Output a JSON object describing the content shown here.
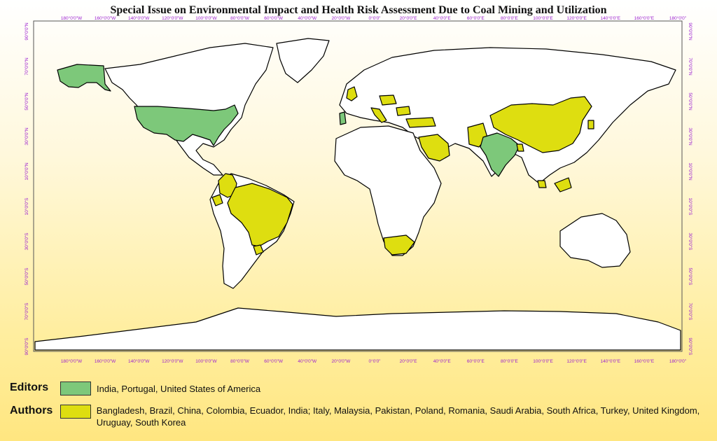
{
  "title": "Special Issue on Environmental Impact and Health Risk Assessment Due to Coal Mining and Utilization",
  "colors": {
    "editors": "#7dc87a",
    "authors": "#dede10",
    "grid_label": "#9b1fd0",
    "land": "#ffffff",
    "outline": "#000000"
  },
  "grid_labels": {
    "longitude": [
      "180°0'0\"W",
      "160°0'0\"W",
      "140°0'0\"W",
      "120°0'0\"W",
      "100°0'0\"W",
      "80°0'0\"W",
      "60°0'0\"W",
      "40°0'0\"W",
      "20°0'0\"W",
      "0°0'0\"",
      "20°0'0\"E",
      "40°0'0\"E",
      "60°0'0\"E",
      "80°0'0\"E",
      "100°0'0\"E",
      "120°0'0\"E",
      "140°0'0\"E",
      "160°0'0\"E",
      "180°0'0\""
    ],
    "latitude": [
      "90°0'0\"N",
      "70°0'0\"N",
      "50°0'0\"N",
      "30°0'0\"N",
      "10°0'0\"N",
      "10°0'0\"S",
      "30°0'0\"S",
      "50°0'0\"S",
      "70°0'0\"S",
      "90°0'0\"S"
    ]
  },
  "legend": {
    "editors": {
      "label": "Editors",
      "countries": "India, Portugal, United States of America"
    },
    "authors": {
      "label": "Authors",
      "countries": "Bangladesh, Brazil, China, Colombia, Ecuador, India; Italy, Malaysia, Pakistan, Poland, Romania, Saudi Arabia, South Africa, Turkey, United Kingdom, Uruguay, South Korea"
    }
  },
  "regions": {
    "editors": [
      "Alaska",
      "United States of America",
      "India",
      "Portugal"
    ],
    "authors": [
      "Colombia",
      "Ecuador",
      "Brazil",
      "Uruguay",
      "South Africa",
      "Saudi Arabia",
      "Pakistan",
      "China",
      "Bangladesh",
      "South Korea",
      "Malaysia",
      "Turkey",
      "Poland",
      "Romania",
      "Italy",
      "United Kingdom"
    ]
  }
}
